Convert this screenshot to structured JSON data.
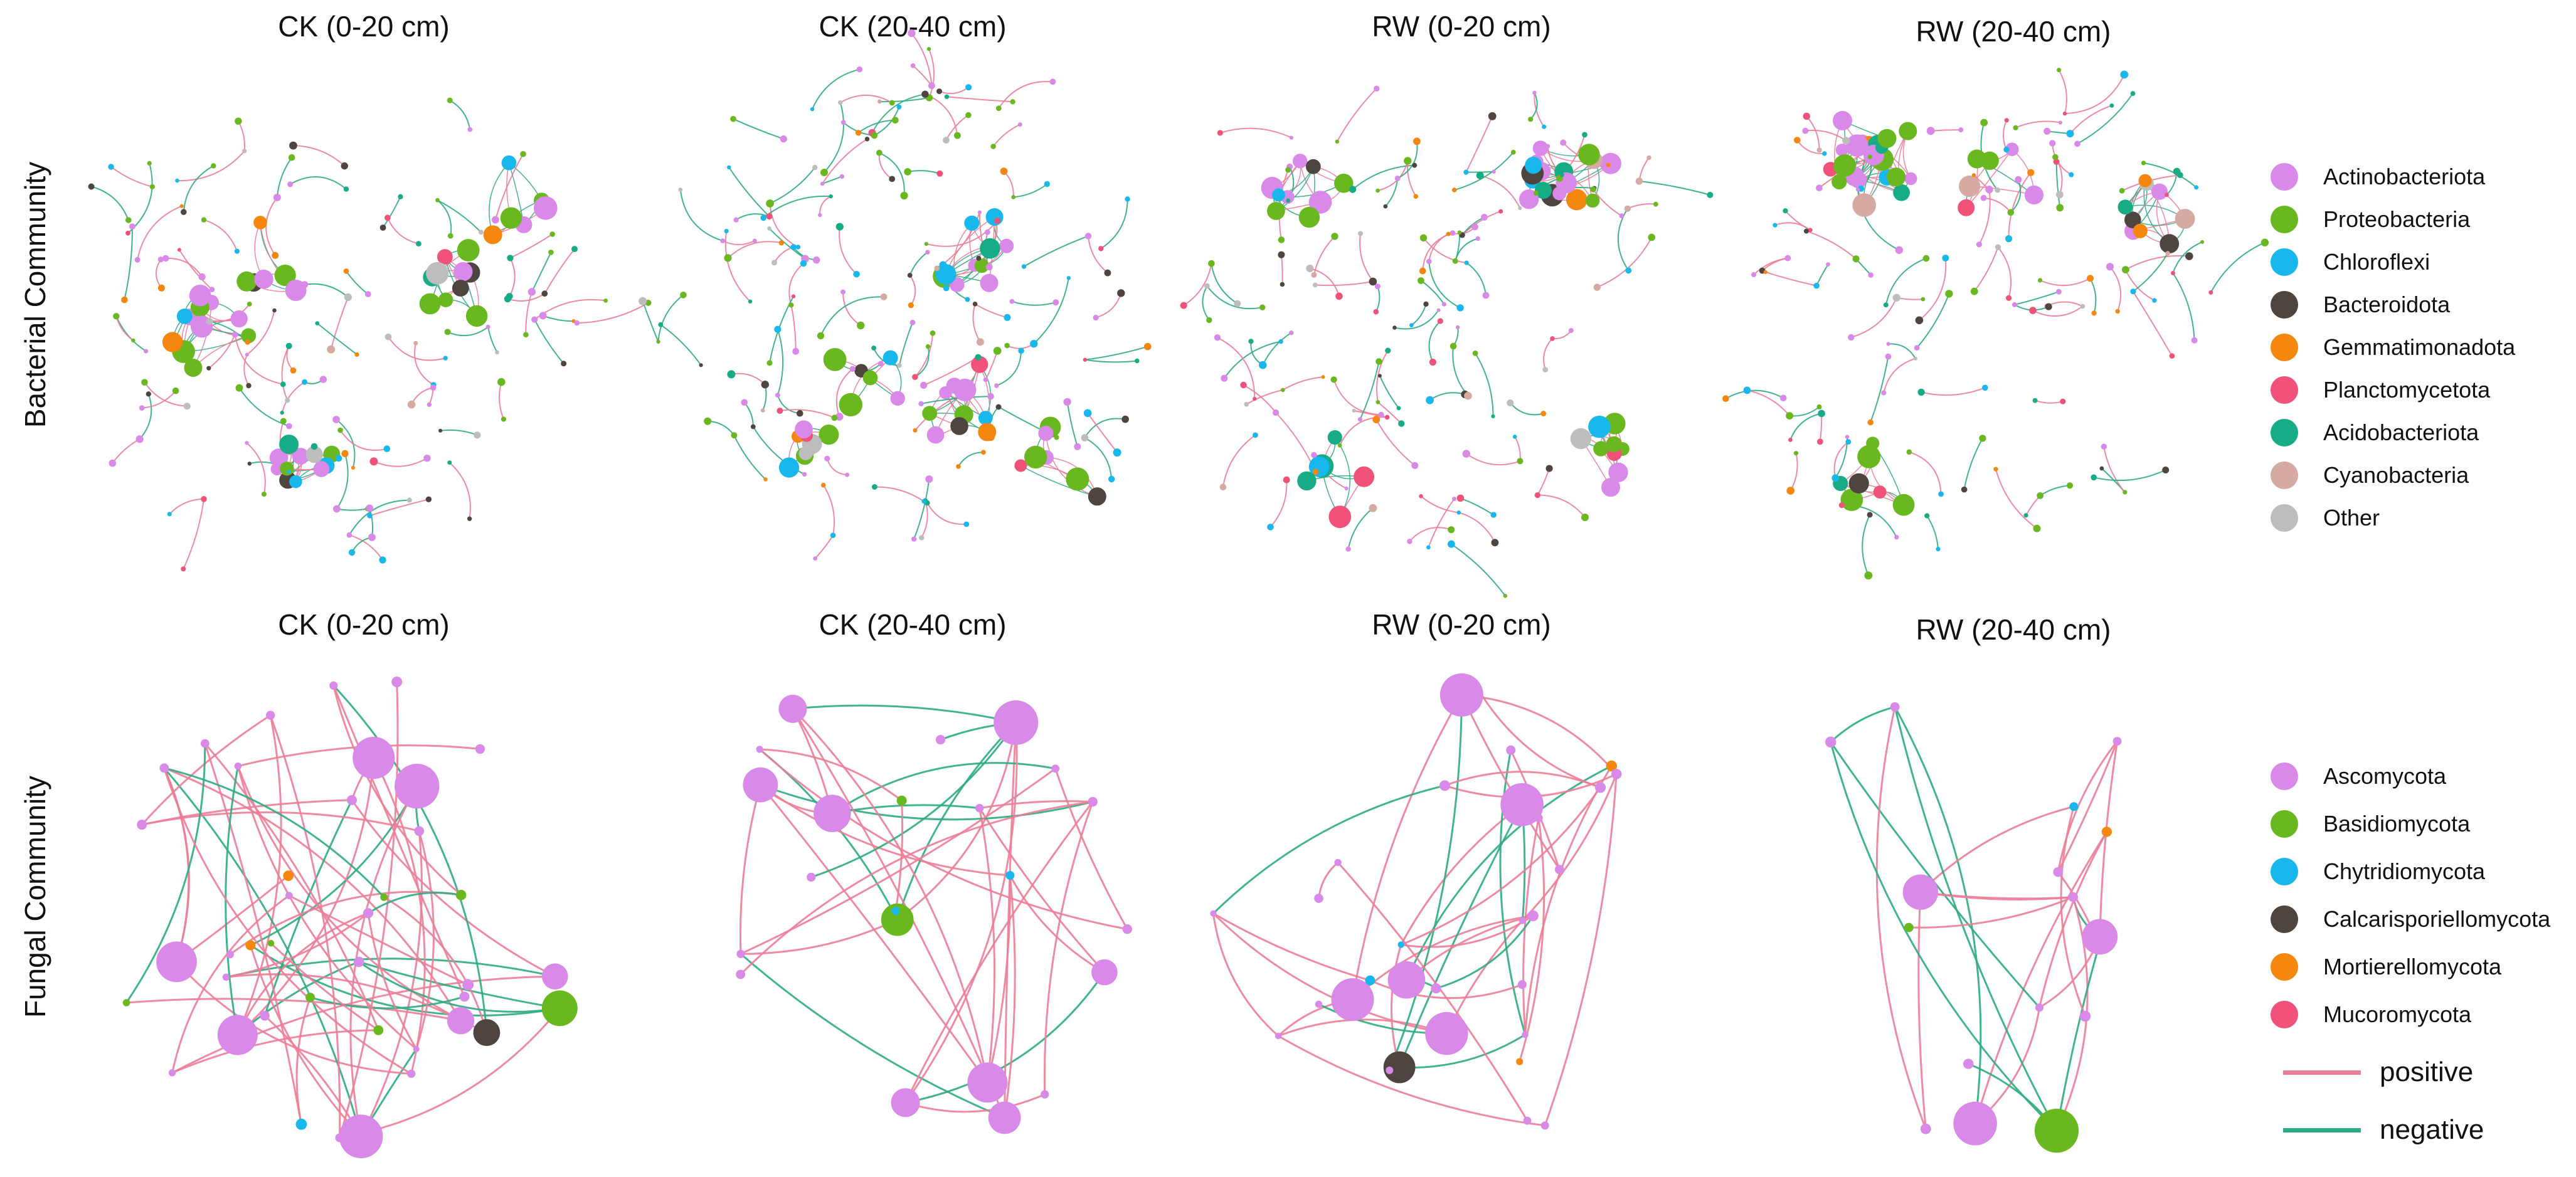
{
  "row_labels": {
    "bacterial": "Bacterial Community",
    "fungal": "Fungal Community"
  },
  "panel_titles": {
    "b_ck_0_20": "CK (0-20 cm)",
    "b_ck_20_40": "CK (20-40 cm)",
    "b_rw_0_20": "RW (0-20 cm)",
    "b_rw_20_40": "RW (20-40 cm)",
    "f_ck_0_20": "CK (0-20 cm)",
    "f_ck_20_40": "CK (20-40 cm)",
    "f_rw_0_20": "RW (0-20 cm)",
    "f_rw_20_40": "RW (20-40 cm)"
  },
  "bacterial_legend": [
    {
      "label": "Actinobacteriota",
      "color": "#d98ae8"
    },
    {
      "label": "Proteobacteria",
      "color": "#6ab820"
    },
    {
      "label": "Chloroflexi",
      "color": "#18b8ec"
    },
    {
      "label": "Bacteroidota",
      "color": "#4e4541"
    },
    {
      "label": "Gemmatimonadota",
      "color": "#f5860e"
    },
    {
      "label": "Planctomycetota",
      "color": "#f0527a"
    },
    {
      "label": "Acidobacteriota",
      "color": "#17ab86"
    },
    {
      "label": "Cyanobacteria",
      "color": "#d4aaa2"
    },
    {
      "label": "Other",
      "color": "#bdbdbd"
    }
  ],
  "fungal_legend": [
    {
      "label": "Ascomycota",
      "color": "#d98ae8"
    },
    {
      "label": "Basidiomycota",
      "color": "#6ab820"
    },
    {
      "label": "Chytridiomycota",
      "color": "#18b8ec"
    },
    {
      "label": "Calcarisporiellomycota",
      "color": "#4e4541"
    },
    {
      "label": "Mortierellomycota",
      "color": "#f5860e"
    },
    {
      "label": "Mucoromycota",
      "color": "#f0527a"
    }
  ],
  "edge_legend": [
    {
      "label": "positive",
      "color": "#ec7d97"
    },
    {
      "label": "negative",
      "color": "#2eac80"
    }
  ]
}
